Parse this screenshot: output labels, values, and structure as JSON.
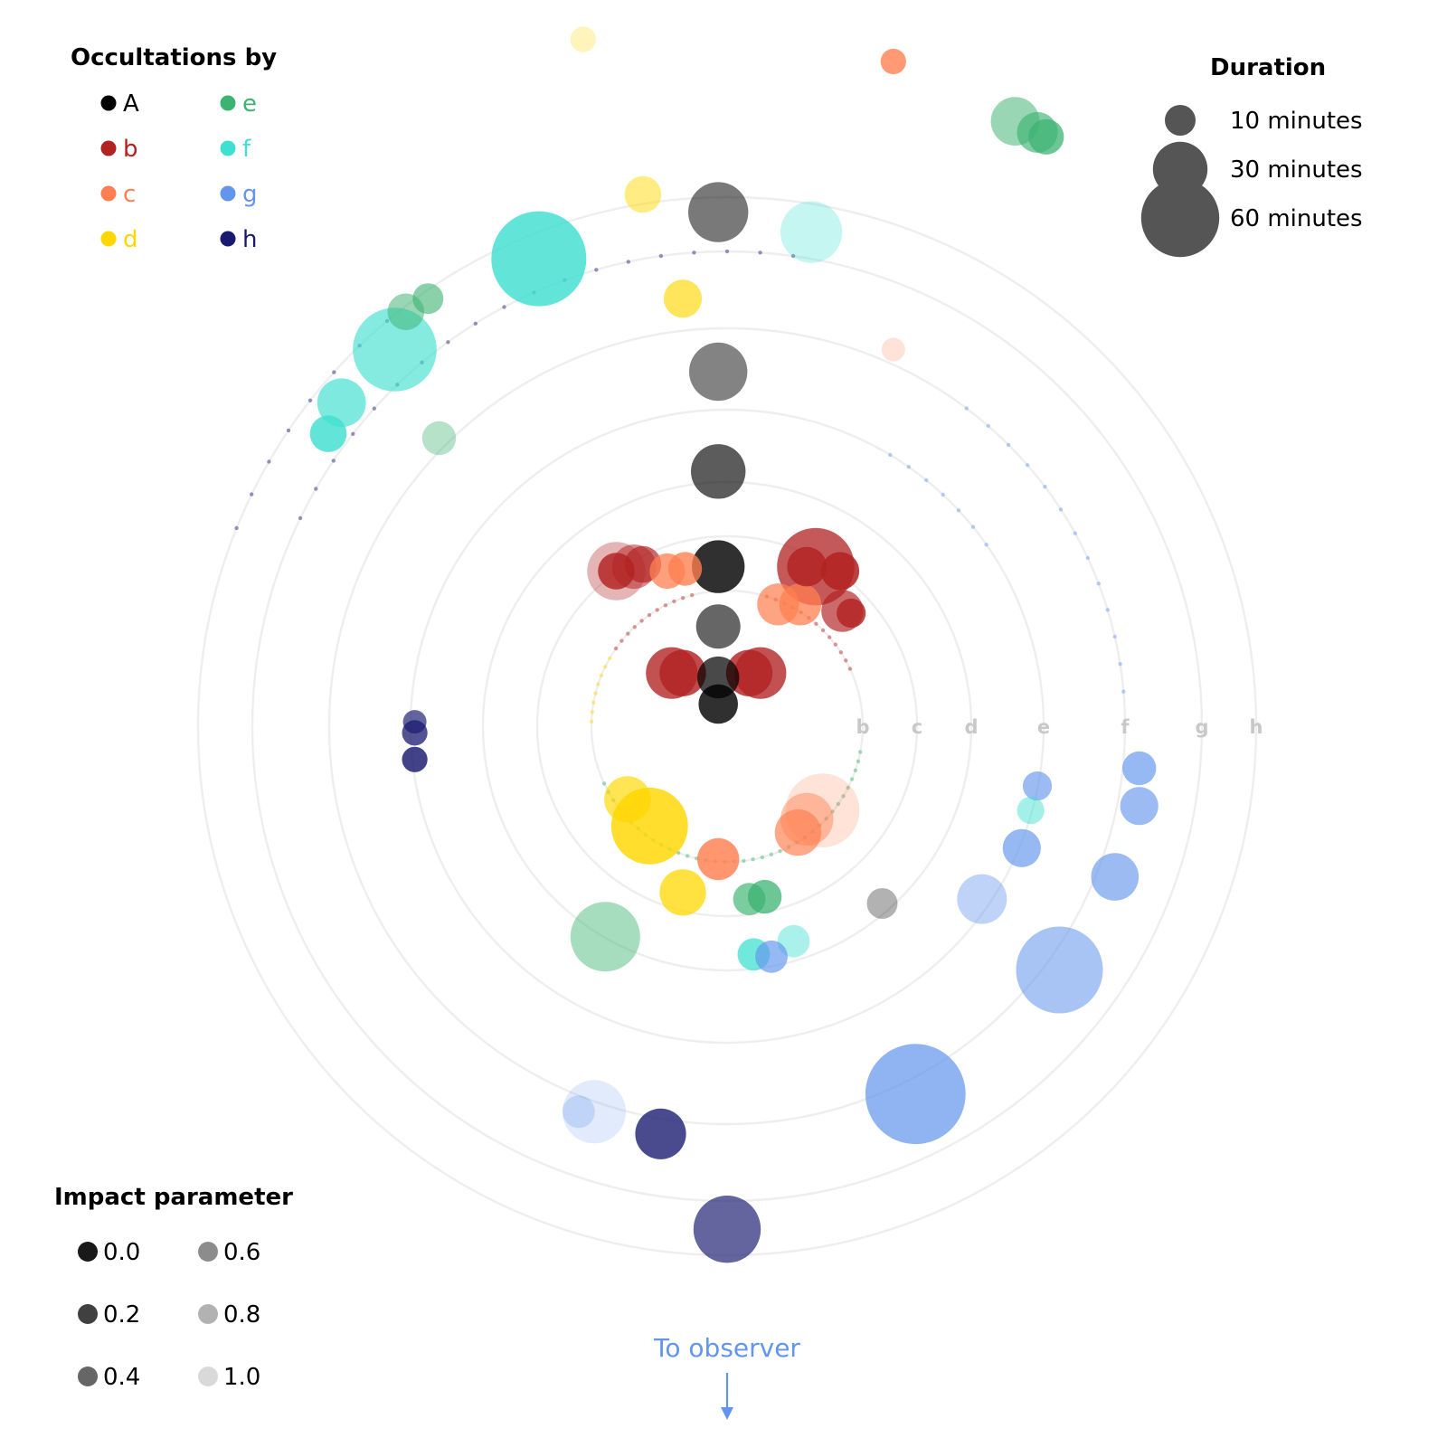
{
  "chart_data": {
    "type": "scatter",
    "title": "",
    "planet_legend": {
      "title": "Occultations by",
      "items": [
        {
          "label": "A",
          "color": "#000000"
        },
        {
          "label": "b",
          "color": "#b22222"
        },
        {
          "label": "c",
          "color": "#ff7f50"
        },
        {
          "label": "d",
          "color": "#ffd700"
        },
        {
          "label": "e",
          "color": "#3cb371"
        },
        {
          "label": "f",
          "color": "#40e0d0"
        },
        {
          "label": "g",
          "color": "#6495ed"
        },
        {
          "label": "h",
          "color": "#191970"
        }
      ]
    },
    "duration_legend": {
      "title": "Duration",
      "items": [
        {
          "label": "10 minutes",
          "minutes": 10
        },
        {
          "label": "30 minutes",
          "minutes": 30
        },
        {
          "label": "60 minutes",
          "minutes": 60
        }
      ]
    },
    "impact_legend": {
      "title": "Impact parameter",
      "items": [
        {
          "label": "0.0",
          "value": 0.0
        },
        {
          "label": "0.2",
          "value": 0.2
        },
        {
          "label": "0.4",
          "value": 0.4
        },
        {
          "label": "0.6",
          "value": 0.6
        },
        {
          "label": "0.8",
          "value": 0.8
        },
        {
          "label": "1.0",
          "value": 1.0
        }
      ]
    },
    "ring_labels": [
      "b",
      "c",
      "d",
      "e",
      "f",
      "g",
      "h"
    ],
    "observer_label": "To observer",
    "observer_color": "#6495ed",
    "ring_color": "#eeeeee",
    "ring_label_color": "#c8c8c8",
    "grid": true,
    "events": [
      {
        "planet": "A",
        "x": -0.04,
        "y": 2.32,
        "minutes": 36,
        "impact": 0.5
      },
      {
        "planet": "A",
        "x": -0.04,
        "y": 1.6,
        "minutes": 34,
        "impact": 0.55
      },
      {
        "planet": "A",
        "x": -0.04,
        "y": 1.15,
        "minutes": 30,
        "impact": 0.35
      },
      {
        "planet": "A",
        "x": -0.04,
        "y": 0.72,
        "minutes": 28,
        "impact": 0.12
      },
      {
        "planet": "A",
        "x": -0.04,
        "y": 0.45,
        "minutes": 20,
        "impact": 0.4
      },
      {
        "planet": "A",
        "x": -0.04,
        "y": 0.22,
        "minutes": 18,
        "impact": 0.25
      },
      {
        "planet": "A",
        "x": -0.04,
        "y": 0.1,
        "minutes": 16,
        "impact": 0.12
      },
      {
        "planet": "A",
        "x": 0.7,
        "y": -0.8,
        "minutes": 10,
        "impact": 0.8
      },
      {
        "planet": "b",
        "x": 0.4,
        "y": 0.72,
        "minutes": 59,
        "impact": 0.2
      },
      {
        "planet": "b",
        "x": -0.5,
        "y": 0.7,
        "minutes": 34,
        "impact": 0.75
      },
      {
        "planet": "b",
        "x": -0.42,
        "y": 0.72,
        "minutes": 20,
        "impact": 0.5
      },
      {
        "planet": "b",
        "x": -0.38,
        "y": 0.73,
        "minutes": 14,
        "impact": 0.3
      },
      {
        "planet": "b",
        "x": -0.5,
        "y": 0.7,
        "minutes": 14,
        "impact": 0.1
      },
      {
        "planet": "b",
        "x": 0.36,
        "y": 0.72,
        "minutes": 16,
        "impact": 0.1
      },
      {
        "planet": "b",
        "x": 0.51,
        "y": 0.7,
        "minutes": 15,
        "impact": 0.05
      },
      {
        "planet": "b",
        "x": 0.52,
        "y": 0.52,
        "minutes": 18,
        "impact": 0.3
      },
      {
        "planet": "b",
        "x": 0.56,
        "y": 0.51,
        "minutes": 9,
        "impact": 0.1
      },
      {
        "planet": "b",
        "x": -0.25,
        "y": 0.24,
        "minutes": 27,
        "impact": 0.15
      },
      {
        "planet": "b",
        "x": 0.15,
        "y": 0.24,
        "minutes": 27,
        "impact": 0.15
      },
      {
        "planet": "b",
        "x": -0.2,
        "y": 0.24,
        "minutes": 22,
        "impact": 0.1
      },
      {
        "planet": "b",
        "x": 0.1,
        "y": 0.24,
        "minutes": 22,
        "impact": 0.1
      },
      {
        "planet": "c",
        "x": -0.19,
        "y": 0.71,
        "minutes": 12,
        "impact": 0.15
      },
      {
        "planet": "c",
        "x": -0.27,
        "y": 0.7,
        "minutes": 13,
        "impact": 0.2
      },
      {
        "planet": "c",
        "x": 0.23,
        "y": 0.55,
        "minutes": 18,
        "impact": 0.25
      },
      {
        "planet": "c",
        "x": 0.33,
        "y": 0.55,
        "minutes": 18,
        "impact": 0.2
      },
      {
        "planet": "c",
        "x": 0.43,
        "y": -0.38,
        "minutes": 54,
        "impact": 0.9
      },
      {
        "planet": "c",
        "x": 0.36,
        "y": -0.42,
        "minutes": 28,
        "impact": 0.6
      },
      {
        "planet": "c",
        "x": 0.32,
        "y": -0.48,
        "minutes": 22,
        "impact": 0.3
      },
      {
        "planet": "c",
        "x": -0.04,
        "y": -0.6,
        "minutes": 18,
        "impact": 0.1
      },
      {
        "planet": "c",
        "x": 0.75,
        "y": 3.0,
        "minutes": 7,
        "impact": 0.15
      },
      {
        "planet": "c",
        "x": 0.75,
        "y": 1.7,
        "minutes": 6,
        "impact": 0.9
      },
      {
        "planet": "d",
        "x": -0.35,
        "y": -0.45,
        "minutes": 58,
        "impact": 0.1
      },
      {
        "planet": "d",
        "x": -0.2,
        "y": -0.75,
        "minutes": 22,
        "impact": 0.2
      },
      {
        "planet": "d",
        "x": -0.45,
        "y": -0.33,
        "minutes": 22,
        "impact": 0.3
      },
      {
        "planet": "d",
        "x": -0.2,
        "y": 1.93,
        "minutes": 15,
        "impact": 0.35
      },
      {
        "planet": "d",
        "x": -0.38,
        "y": 2.4,
        "minutes": 14,
        "impact": 0.55
      },
      {
        "planet": "d",
        "x": -0.65,
        "y": 3.1,
        "minutes": 7,
        "impact": 0.85
      },
      {
        "planet": "e",
        "x": -0.55,
        "y": -0.95,
        "minutes": 48,
        "impact": 0.6
      },
      {
        "planet": "e",
        "x": 0.17,
        "y": -0.77,
        "minutes": 12,
        "impact": 0.2
      },
      {
        "planet": "e",
        "x": 0.1,
        "y": -0.78,
        "minutes": 11,
        "impact": 0.3
      },
      {
        "planet": "e",
        "x": -1.45,
        "y": 1.87,
        "minutes": 14,
        "impact": 0.5
      },
      {
        "planet": "e",
        "x": -1.35,
        "y": 1.93,
        "minutes": 10,
        "impact": 0.4
      },
      {
        "planet": "e",
        "x": -1.3,
        "y": 1.3,
        "minutes": 12,
        "impact": 0.7
      },
      {
        "planet": "e",
        "x": 1.3,
        "y": 2.73,
        "minutes": 24,
        "impact": 0.5
      },
      {
        "planet": "e",
        "x": 1.4,
        "y": 2.68,
        "minutes": 17,
        "impact": 0.35
      },
      {
        "planet": "e",
        "x": 1.44,
        "y": 2.66,
        "minutes": 13,
        "impact": 0.2
      },
      {
        "planet": "f",
        "x": -0.85,
        "y": 2.11,
        "minutes": 88,
        "impact": 0.1
      },
      {
        "planet": "f",
        "x": -1.5,
        "y": 1.7,
        "minutes": 69,
        "impact": 0.35
      },
      {
        "planet": "f",
        "x": 0.38,
        "y": 2.23,
        "minutes": 38,
        "impact": 0.8
      },
      {
        "planet": "f",
        "x": -1.74,
        "y": 1.46,
        "minutes": 24,
        "impact": 0.3
      },
      {
        "planet": "f",
        "x": -1.8,
        "y": 1.32,
        "minutes": 14,
        "impact": 0.1
      },
      {
        "planet": "f",
        "x": 0.12,
        "y": -1.03,
        "minutes": 11,
        "impact": 0.2
      },
      {
        "planet": "f",
        "x": 0.3,
        "y": -0.97,
        "minutes": 11,
        "impact": 0.6
      },
      {
        "planet": "f",
        "x": 1.37,
        "y": -0.38,
        "minutes": 8,
        "impact": 0.55
      },
      {
        "planet": "g",
        "x": 0.85,
        "y": -1.66,
        "minutes": 98,
        "impact": 0.25
      },
      {
        "planet": "g",
        "x": 1.5,
        "y": -1.1,
        "minutes": 74,
        "impact": 0.45
      },
      {
        "planet": "g",
        "x": 1.15,
        "y": -0.78,
        "minutes": 25,
        "impact": 0.65
      },
      {
        "planet": "g",
        "x": 1.75,
        "y": -0.68,
        "minutes": 23,
        "impact": 0.35
      },
      {
        "planet": "g",
        "x": 1.33,
        "y": -0.55,
        "minutes": 15,
        "impact": 0.3
      },
      {
        "planet": "g",
        "x": 1.86,
        "y": -0.36,
        "minutes": 15,
        "impact": 0.35
      },
      {
        "planet": "g",
        "x": 1.86,
        "y": -0.19,
        "minutes": 12,
        "impact": 0.3
      },
      {
        "planet": "g",
        "x": 0.2,
        "y": -1.04,
        "minutes": 11,
        "impact": 0.3
      },
      {
        "planet": "g",
        "x": 1.4,
        "y": -0.27,
        "minutes": 9,
        "impact": 0.35
      },
      {
        "planet": "g",
        "x": -0.6,
        "y": -1.74,
        "minutes": 40,
        "impact": 0.95
      },
      {
        "planet": "g",
        "x": -0.67,
        "y": -1.74,
        "minutes": 11,
        "impact": 0.85
      },
      {
        "planet": "h",
        "x": 0.0,
        "y": -2.27,
        "minutes": 45,
        "impact": 0.3
      },
      {
        "planet": "h",
        "x": -0.3,
        "y": -1.84,
        "minutes": 26,
        "impact": 0.15
      },
      {
        "planet": "h",
        "x": -1.41,
        "y": -0.15,
        "minutes": 7,
        "impact": 0.1
      },
      {
        "planet": "h",
        "x": -1.41,
        "y": -0.03,
        "minutes": 7,
        "impact": 0.2
      },
      {
        "planet": "h",
        "x": -1.41,
        "y": 0.02,
        "minutes": 6,
        "impact": 0.3
      }
    ]
  }
}
